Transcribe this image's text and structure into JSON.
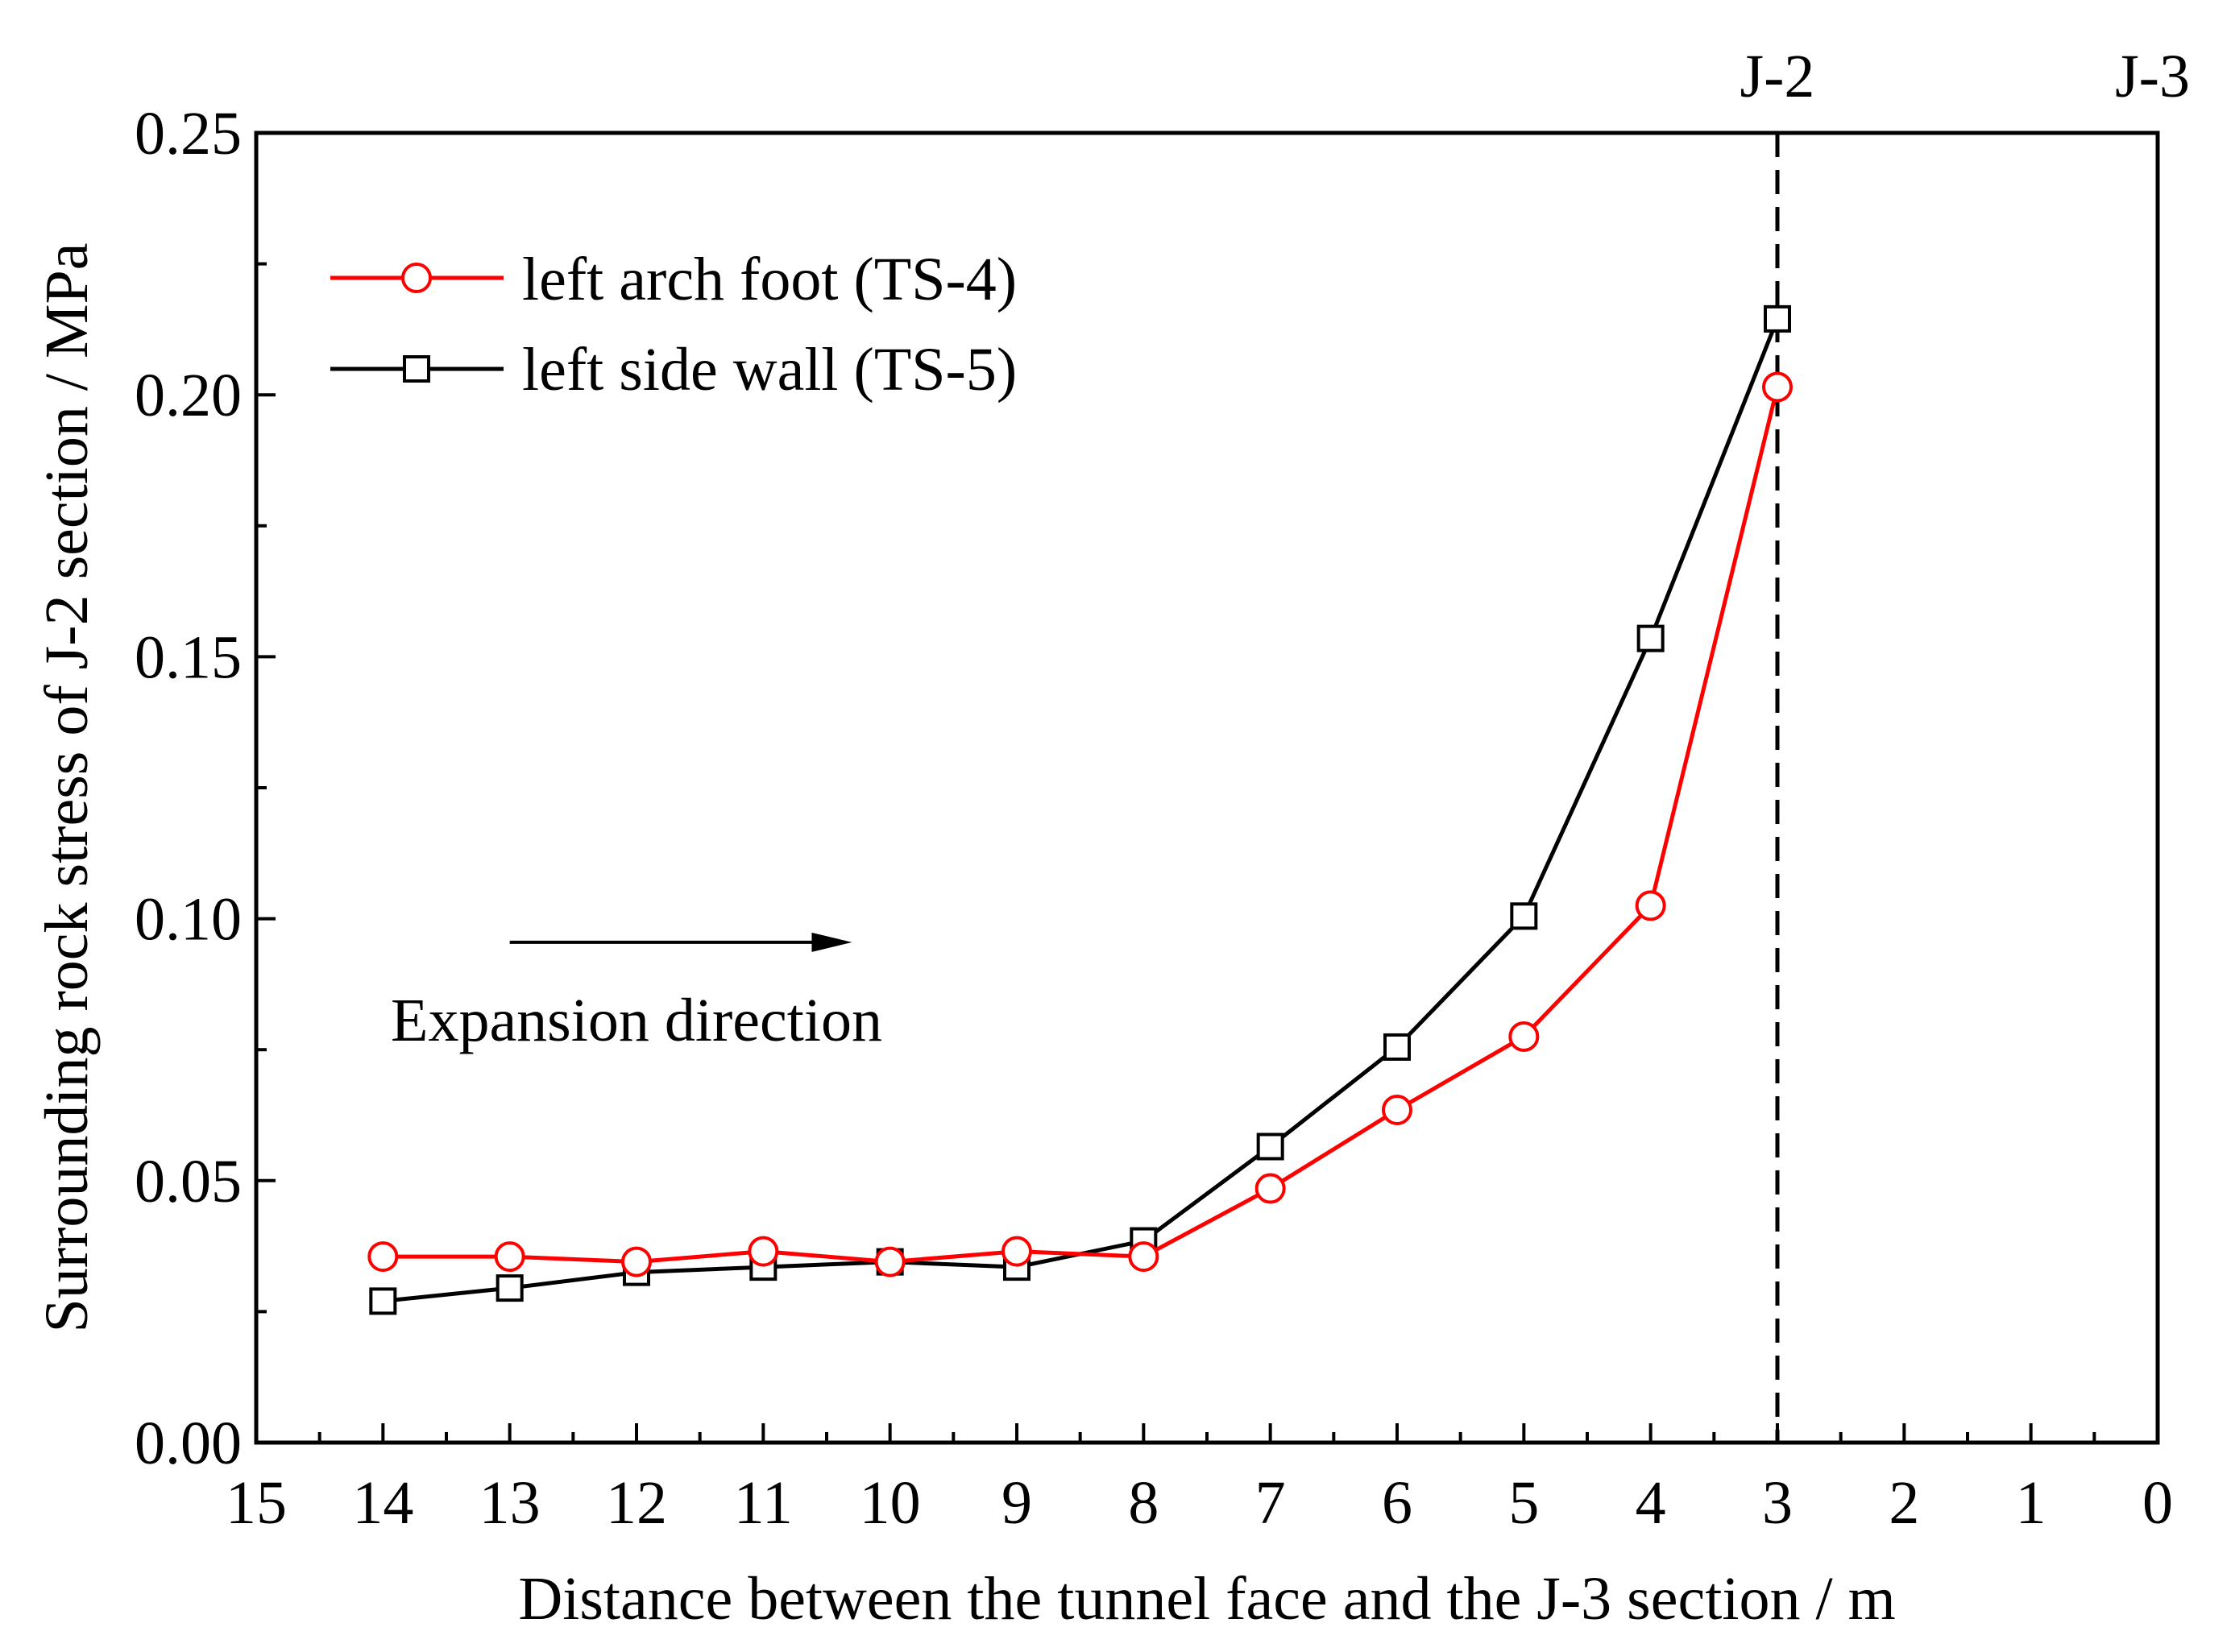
{
  "chart_data": {
    "type": "line",
    "title": "",
    "xlabel": "Distance between the tunnel face and the J-3 section / m",
    "ylabel": "Surrounding rock stress of J-2 section / MPa",
    "xlim": [
      15,
      0
    ],
    "ylim": [
      0,
      0.25
    ],
    "x_reversed": true,
    "xticks": [
      15,
      14,
      13,
      12,
      11,
      10,
      9,
      8,
      7,
      6,
      5,
      4,
      3,
      2,
      1,
      0
    ],
    "xtick_labels": [
      "15",
      "14",
      "13",
      "12",
      "11",
      "10",
      "9",
      "8",
      "7",
      "6",
      "5",
      "4",
      "3",
      "2",
      "1",
      "0"
    ],
    "yticks": [
      0,
      0.05,
      0.1,
      0.15,
      0.2,
      0.25
    ],
    "ytick_labels": [
      "0.00",
      "0.05",
      "0.10",
      "0.15",
      "0.20",
      "0.25"
    ],
    "grid": false,
    "legend_position": "top-left",
    "x": [
      14,
      13,
      12,
      11,
      10,
      9,
      8,
      7,
      6,
      5,
      4,
      3
    ],
    "series": [
      {
        "name": "left arch foot (TS-4)",
        "color": "#ff0000",
        "marker": "circle",
        "values": [
          0.0355,
          0.0355,
          0.0345,
          0.0365,
          0.0345,
          0.0365,
          0.0355,
          0.0485,
          0.0635,
          0.0775,
          0.1025,
          0.2015
        ]
      },
      {
        "name": "left side wall (TS-5)",
        "color": "#000000",
        "marker": "square",
        "values": [
          0.027,
          0.0295,
          0.0325,
          0.0335,
          0.0345,
          0.0335,
          0.0385,
          0.0565,
          0.0755,
          0.1005,
          0.1535,
          0.2145
        ]
      }
    ],
    "reference_lines": [
      {
        "x": 3,
        "label": "J-2",
        "style": "dashed"
      },
      {
        "x": 0,
        "label": "J-3",
        "style": "none"
      }
    ],
    "annotation": {
      "text": "Expansion direction",
      "arrow_from_x": 13.0,
      "arrow_to_x": 10.3,
      "arrow_y": 0.0955,
      "text_x": 12.0,
      "text_y": 0.081
    }
  }
}
